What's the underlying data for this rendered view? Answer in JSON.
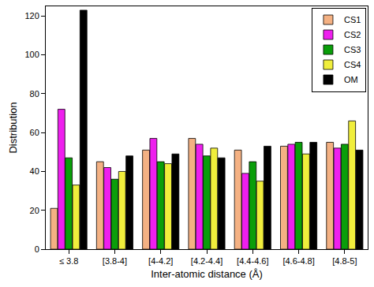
{
  "chart_data": {
    "type": "bar",
    "x_label": "Inter-atomic distance (Å)",
    "y_label": "Distribution",
    "categories": [
      "≤ 3.8",
      "[3.8-4]",
      "[4-4.2]",
      "[4.2-4.4]",
      "[4.4-4.6]",
      "[4.6-4.8]",
      "[4.8-5]"
    ],
    "series": [
      {
        "name": "CS1",
        "color": "#f4b183",
        "values": [
          21,
          45,
          51,
          57,
          51,
          53,
          55
        ]
      },
      {
        "name": "CS2",
        "color": "#ee1fee",
        "values": [
          72,
          42,
          57,
          54,
          39,
          54,
          52
        ]
      },
      {
        "name": "CS3",
        "color": "#0a9e0a",
        "values": [
          47,
          36,
          45,
          48,
          45,
          55,
          54
        ]
      },
      {
        "name": "CS4",
        "color": "#f0ee3c",
        "values": [
          33,
          40,
          44,
          52,
          35,
          49,
          66
        ]
      },
      {
        "name": "OM",
        "color": "#000000",
        "values": [
          123,
          48,
          49,
          47,
          53,
          55,
          51
        ]
      }
    ],
    "ylim": [
      0,
      125
    ],
    "yticks": [
      0,
      20,
      40,
      60,
      80,
      100,
      120
    ],
    "grid": false,
    "legend": "top right"
  }
}
